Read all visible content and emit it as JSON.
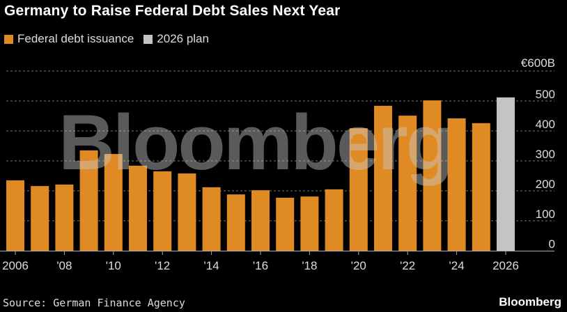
{
  "title": "Germany to Raise Federal Debt Sales Next Year",
  "source": "Source: German Finance Agency",
  "logo": "Bloomberg",
  "watermark": "Bloomberg",
  "chart_data": {
    "type": "bar",
    "title": "Germany to Raise Federal Debt Sales Next Year",
    "categories": [
      "2006",
      "2007",
      "2008",
      "2009",
      "2010",
      "2011",
      "2012",
      "2013",
      "2014",
      "2015",
      "2016",
      "2017",
      "2018",
      "2019",
      "2020",
      "2021",
      "2022",
      "2023",
      "2024",
      "2025",
      "2026"
    ],
    "series": [
      {
        "name": "Federal debt issuance",
        "color": "#e08a24",
        "values": [
          235,
          216,
          221,
          335,
          323,
          284,
          265,
          258,
          212,
          188,
          202,
          177,
          181,
          205,
          409,
          484,
          451,
          502,
          442,
          426,
          null
        ]
      },
      {
        "name": "2026 plan",
        "color": "#c4c4c4",
        "values": [
          null,
          null,
          null,
          null,
          null,
          null,
          null,
          null,
          null,
          null,
          null,
          null,
          null,
          null,
          null,
          null,
          null,
          null,
          null,
          null,
          512
        ]
      }
    ],
    "xtick_labels": [
      "2006",
      "'08",
      "'10",
      "'12",
      "'14",
      "'16",
      "'18",
      "'20",
      "'22",
      "'24",
      "2026"
    ],
    "ytick_labels": [
      "0",
      "100",
      "200",
      "300",
      "400",
      "500",
      "€600B"
    ],
    "yticks": [
      0,
      100,
      200,
      300,
      400,
      500,
      600
    ],
    "ylim": [
      0,
      600
    ],
    "ylabel": "",
    "xlabel": "",
    "grid": true,
    "legend": "top-left"
  }
}
